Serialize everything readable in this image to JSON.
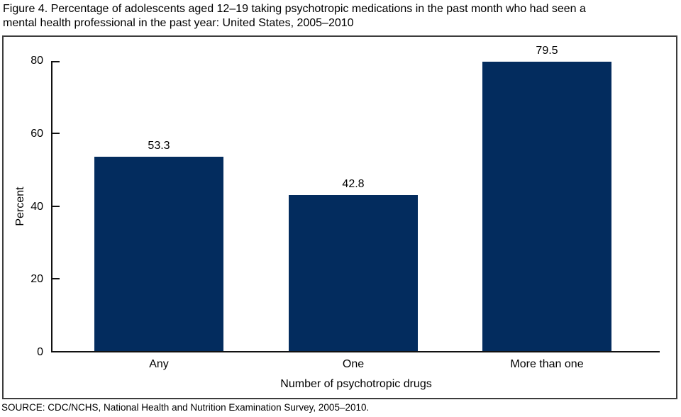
{
  "figure": {
    "title_lines": [
      "Figure 4. Percentage of adolescents aged 12–19 taking psychotropic medications in the past month who had seen a",
      "mental health professional in the past year: United States, 2005–2010"
    ],
    "source": "SOURCE: CDC/NCHS, National Health and Nutrition Examination Survey, 2005–2010."
  },
  "colors": {
    "bar": "#032c5e",
    "frame_border": "#3c3c3c",
    "axis": "#111111"
  },
  "chart_data": {
    "type": "bar",
    "categories": [
      "Any",
      "One",
      "More than one"
    ],
    "values": [
      53.3,
      42.8,
      79.5
    ],
    "data_labels": [
      "53.3",
      "42.8",
      "79.5"
    ],
    "title": "",
    "xlabel": "Number of psychotropic drugs",
    "ylabel": "Percent",
    "ylim": [
      0,
      80
    ],
    "yticks": [
      0,
      20,
      40,
      60,
      80
    ],
    "grid": false,
    "legend": "none"
  }
}
